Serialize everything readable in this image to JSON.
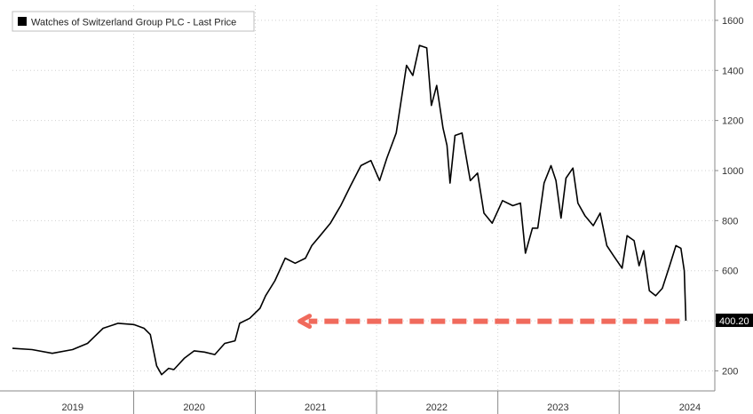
{
  "chart_data": {
    "type": "line",
    "title": "",
    "xlabel": "",
    "ylabel": "",
    "legend": {
      "placement": "top-left",
      "entries": [
        "Watches of Switzerland Group PLC - Last Price"
      ]
    },
    "series": [
      {
        "name": "Watches of Switzerland Group PLC - Last Price",
        "color": "#000000",
        "points": [
          [
            "2019-01-01",
            290
          ],
          [
            "2019-03-01",
            285
          ],
          [
            "2019-05-01",
            270
          ],
          [
            "2019-07-01",
            285
          ],
          [
            "2019-08-15",
            310
          ],
          [
            "2019-10-01",
            370
          ],
          [
            "2019-11-15",
            390
          ],
          [
            "2020-01-01",
            385
          ],
          [
            "2020-02-01",
            370
          ],
          [
            "2020-02-20",
            345
          ],
          [
            "2020-03-10",
            220
          ],
          [
            "2020-03-25",
            185
          ],
          [
            "2020-04-15",
            210
          ],
          [
            "2020-05-01",
            205
          ],
          [
            "2020-06-01",
            250
          ],
          [
            "2020-07-01",
            280
          ],
          [
            "2020-08-01",
            275
          ],
          [
            "2020-09-01",
            265
          ],
          [
            "2020-10-01",
            310
          ],
          [
            "2020-11-01",
            320
          ],
          [
            "2020-11-15",
            390
          ],
          [
            "2020-12-15",
            410
          ],
          [
            "2021-01-15",
            450
          ],
          [
            "2021-02-01",
            500
          ],
          [
            "2021-03-01",
            560
          ],
          [
            "2021-04-01",
            650
          ],
          [
            "2021-05-01",
            630
          ],
          [
            "2021-06-01",
            650
          ],
          [
            "2021-06-20",
            700
          ],
          [
            "2021-07-15",
            740
          ],
          [
            "2021-08-15",
            790
          ],
          [
            "2021-09-15",
            860
          ],
          [
            "2021-10-15",
            940
          ],
          [
            "2021-11-15",
            1020
          ],
          [
            "2021-12-15",
            1040
          ],
          [
            "2022-01-10",
            960
          ],
          [
            "2022-02-01",
            1050
          ],
          [
            "2022-03-01",
            1150
          ],
          [
            "2022-04-01",
            1420
          ],
          [
            "2022-04-20",
            1380
          ],
          [
            "2022-05-10",
            1500
          ],
          [
            "2022-06-01",
            1490
          ],
          [
            "2022-06-15",
            1260
          ],
          [
            "2022-07-01",
            1340
          ],
          [
            "2022-07-20",
            1170
          ],
          [
            "2022-08-01",
            1100
          ],
          [
            "2022-08-10",
            950
          ],
          [
            "2022-08-25",
            1140
          ],
          [
            "2022-09-15",
            1150
          ],
          [
            "2022-10-10",
            960
          ],
          [
            "2022-11-01",
            990
          ],
          [
            "2022-11-20",
            830
          ],
          [
            "2022-12-15",
            790
          ],
          [
            "2023-01-15",
            880
          ],
          [
            "2023-02-15",
            860
          ],
          [
            "2023-03-10",
            870
          ],
          [
            "2023-03-25",
            670
          ],
          [
            "2023-04-15",
            770
          ],
          [
            "2023-05-01",
            770
          ],
          [
            "2023-05-20",
            950
          ],
          [
            "2023-06-10",
            1020
          ],
          [
            "2023-06-25",
            960
          ],
          [
            "2023-07-10",
            810
          ],
          [
            "2023-07-25",
            970
          ],
          [
            "2023-08-15",
            1010
          ],
          [
            "2023-08-30",
            870
          ],
          [
            "2023-09-20",
            820
          ],
          [
            "2023-10-15",
            780
          ],
          [
            "2023-11-05",
            830
          ],
          [
            "2023-11-25",
            700
          ],
          [
            "2023-12-15",
            660
          ],
          [
            "2024-01-10",
            610
          ],
          [
            "2024-01-25",
            740
          ],
          [
            "2024-02-15",
            720
          ],
          [
            "2024-03-01",
            620
          ],
          [
            "2024-03-15",
            680
          ],
          [
            "2024-04-01",
            520
          ],
          [
            "2024-04-20",
            500
          ],
          [
            "2024-05-10",
            530
          ],
          [
            "2024-06-01",
            620
          ],
          [
            "2024-06-20",
            700
          ],
          [
            "2024-07-05",
            690
          ],
          [
            "2024-07-15",
            600
          ],
          [
            "2024-07-20",
            400.2
          ]
        ]
      }
    ],
    "y_axis": {
      "position": "right",
      "range": [
        120,
        1660
      ],
      "ticks": [
        200,
        400,
        600,
        800,
        1000,
        1200,
        1400,
        1600
      ],
      "tick_labels": [
        "200",
        "",
        "600",
        "800",
        "1000",
        "1200",
        "1400",
        "1600"
      ]
    },
    "x_axis": {
      "range": [
        "2019-01-01",
        "2024-10-15"
      ],
      "labels": [
        {
          "label": "2019",
          "at": "2019-07-01"
        },
        {
          "label": "2020",
          "at": "2020-07-01"
        },
        {
          "label": "2021",
          "at": "2021-07-01"
        },
        {
          "label": "2022",
          "at": "2022-07-01"
        },
        {
          "label": "2023",
          "at": "2023-07-01"
        },
        {
          "label": "2024",
          "at": "2024-08-01"
        }
      ],
      "dividers": [
        "2020-01-01",
        "2021-01-01",
        "2022-01-01",
        "2023-01-01",
        "2024-01-01"
      ]
    },
    "grid": true,
    "last_value_label": {
      "value": 400.2,
      "text": "400.20"
    },
    "annotation_arrow": {
      "color": "#f06a5c",
      "direction": "left",
      "y": 400,
      "from": "2024-07-01",
      "to": "2021-05-15"
    }
  }
}
